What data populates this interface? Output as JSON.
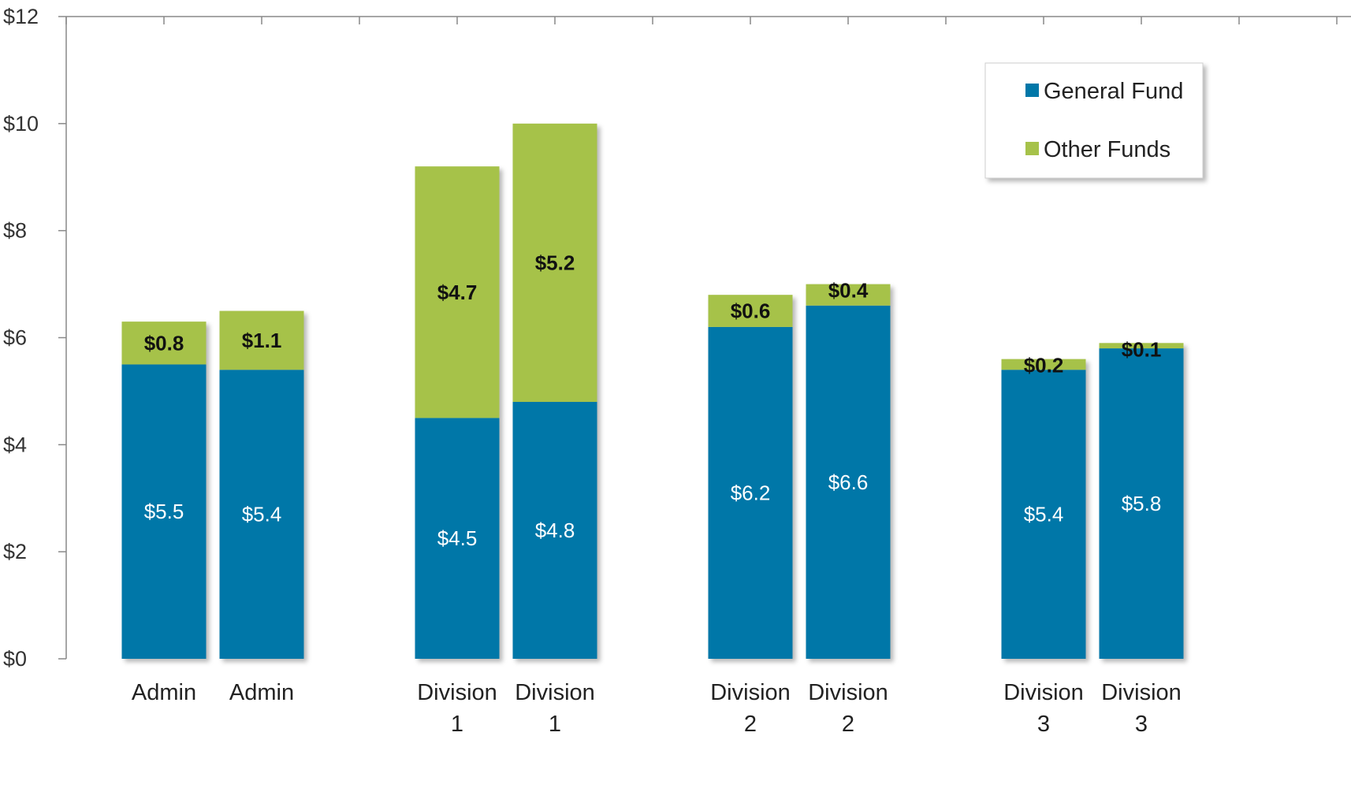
{
  "chart_data": {
    "type": "bar",
    "stacked": true,
    "categories": [
      "Admin",
      "Admin",
      "Division 1",
      "Division 1",
      "Division 2",
      "Division 2",
      "Division 3",
      "Division 3"
    ],
    "category_lines": [
      [
        "Admin"
      ],
      [
        "Admin"
      ],
      [
        "Division",
        "1"
      ],
      [
        "Division",
        "1"
      ],
      [
        "Division",
        "2"
      ],
      [
        "Division",
        "2"
      ],
      [
        "Division",
        "3"
      ],
      [
        "Division",
        "3"
      ]
    ],
    "series": [
      {
        "name": "General Fund",
        "color": "#0077A8",
        "values": [
          5.5,
          5.4,
          4.5,
          4.8,
          6.2,
          6.6,
          5.4,
          5.8
        ],
        "labels": [
          "$5.5",
          "$5.4",
          "$4.5",
          "$4.8",
          "$6.2",
          "$6.6",
          "$5.4",
          "$5.8"
        ]
      },
      {
        "name": "Other Funds",
        "color": "#A6C24A",
        "values": [
          0.8,
          1.1,
          4.7,
          5.2,
          0.6,
          0.4,
          0.2,
          0.1
        ],
        "labels": [
          "$0.8",
          "$1.1",
          "$4.7",
          "$5.2",
          "$0.6",
          "$0.4",
          "$0.2",
          "$0.1"
        ]
      }
    ],
    "y_ticks": [
      "$0",
      "$2",
      "$4",
      "$6",
      "$8",
      "$10",
      "$12"
    ],
    "ylim": [
      0,
      12
    ],
    "title": "",
    "xlabel": "",
    "ylabel": "",
    "legend_position": "top-right",
    "grid": false
  }
}
